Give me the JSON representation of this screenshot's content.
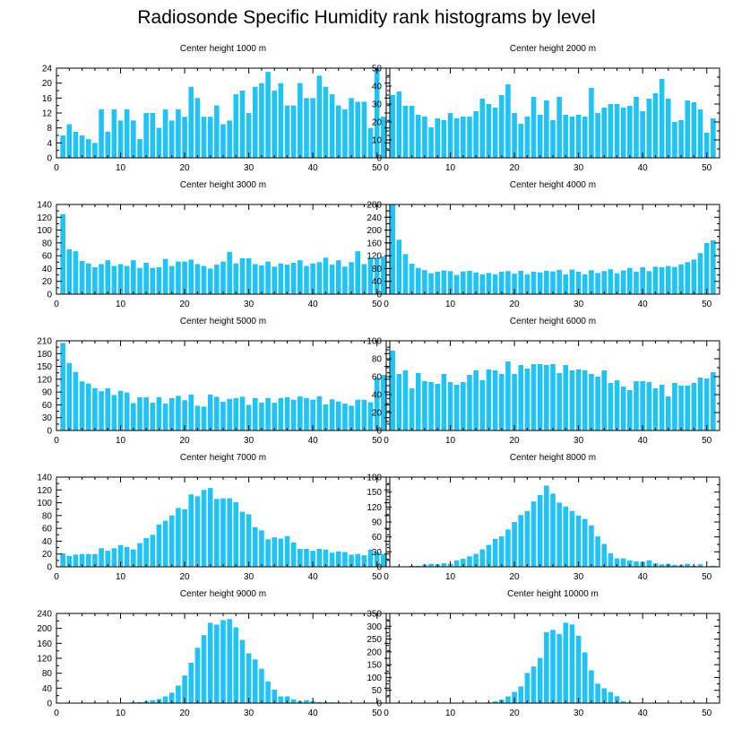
{
  "title": "Radiosonde Specific Humidity rank histograms by level",
  "colors": {
    "bar": "#1fc3f5",
    "axis": "#000000",
    "background": "#ffffff"
  },
  "chart_data": [
    {
      "type": "bar",
      "title": "Center height 1000 m",
      "xlim": [
        0,
        52
      ],
      "ylim": [
        0,
        24
      ],
      "xticks": [
        0,
        10,
        20,
        30,
        40,
        50
      ],
      "yticks": [
        0,
        4,
        8,
        12,
        16,
        20,
        24
      ],
      "x": [
        1,
        2,
        3,
        4,
        5,
        6,
        7,
        8,
        9,
        10,
        11,
        12,
        13,
        14,
        15,
        16,
        17,
        18,
        19,
        20,
        21,
        22,
        23,
        24,
        25,
        26,
        27,
        28,
        29,
        30,
        31,
        32,
        33,
        34,
        35,
        36,
        37,
        38,
        39,
        40,
        41,
        42,
        43,
        44,
        45,
        46,
        47,
        48,
        49,
        50,
        51
      ],
      "values": [
        6,
        9,
        7,
        6,
        5,
        4,
        13,
        7,
        13,
        10,
        13,
        10,
        5,
        12,
        12,
        8,
        13,
        10,
        13,
        11,
        19,
        16,
        11,
        11,
        14,
        9,
        10,
        17,
        18,
        12,
        19,
        20,
        23,
        18,
        20,
        14,
        14,
        20,
        16,
        16,
        22,
        19,
        17,
        14,
        13,
        16,
        15,
        15,
        8,
        24,
        11
      ]
    },
    {
      "type": "bar",
      "title": "Center height 2000 m",
      "xlim": [
        0,
        52
      ],
      "ylim": [
        0,
        50
      ],
      "xticks": [
        0,
        10,
        20,
        30,
        40,
        50
      ],
      "yticks": [
        0,
        10,
        20,
        30,
        40,
        50
      ],
      "x": [
        1,
        2,
        3,
        4,
        5,
        6,
        7,
        8,
        9,
        10,
        11,
        12,
        13,
        14,
        15,
        16,
        17,
        18,
        19,
        20,
        21,
        22,
        23,
        24,
        25,
        26,
        27,
        28,
        29,
        30,
        31,
        32,
        33,
        34,
        35,
        36,
        37,
        38,
        39,
        40,
        41,
        42,
        43,
        44,
        45,
        46,
        47,
        48,
        49,
        50,
        51
      ],
      "values": [
        35,
        37,
        29,
        29,
        24,
        23,
        17,
        22,
        21,
        25,
        22,
        23,
        23,
        26,
        33,
        30,
        28,
        35,
        41,
        25,
        19,
        23,
        34,
        24,
        32,
        21,
        34,
        24,
        23,
        24,
        23,
        39,
        25,
        28,
        30,
        30,
        28,
        29,
        34,
        26,
        33,
        36,
        44,
        33,
        20,
        21,
        32,
        31,
        27,
        14,
        22
      ]
    },
    {
      "type": "bar",
      "title": "Center height 3000 m",
      "xlim": [
        0,
        52
      ],
      "ylim": [
        0,
        140
      ],
      "xticks": [
        0,
        10,
        20,
        30,
        40,
        50
      ],
      "yticks": [
        0,
        20,
        40,
        60,
        80,
        100,
        120,
        140
      ],
      "x": [
        1,
        2,
        3,
        4,
        5,
        6,
        7,
        8,
        9,
        10,
        11,
        12,
        13,
        14,
        15,
        16,
        17,
        18,
        19,
        20,
        21,
        22,
        23,
        24,
        25,
        26,
        27,
        28,
        29,
        30,
        31,
        32,
        33,
        34,
        35,
        36,
        37,
        38,
        39,
        40,
        41,
        42,
        43,
        44,
        45,
        46,
        47,
        48,
        49,
        50,
        51
      ],
      "values": [
        125,
        70,
        67,
        52,
        48,
        42,
        47,
        53,
        44,
        47,
        44,
        53,
        41,
        49,
        41,
        42,
        55,
        44,
        51,
        51,
        54,
        47,
        44,
        40,
        46,
        51,
        66,
        48,
        56,
        56,
        47,
        45,
        51,
        43,
        48,
        46,
        49,
        53,
        44,
        48,
        50,
        57,
        46,
        53,
        43,
        50,
        67,
        47,
        57,
        57,
        59
      ]
    },
    {
      "type": "bar",
      "title": "Center height 4000 m",
      "xlim": [
        0,
        52
      ],
      "ylim": [
        0,
        280
      ],
      "xticks": [
        0,
        10,
        20,
        30,
        40,
        50
      ],
      "yticks": [
        0,
        40,
        80,
        120,
        160,
        200,
        240,
        280
      ],
      "x": [
        1,
        2,
        3,
        4,
        5,
        6,
        7,
        8,
        9,
        10,
        11,
        12,
        13,
        14,
        15,
        16,
        17,
        18,
        19,
        20,
        21,
        22,
        23,
        24,
        25,
        26,
        27,
        28,
        29,
        30,
        31,
        32,
        33,
        34,
        35,
        36,
        37,
        38,
        39,
        40,
        41,
        42,
        43,
        44,
        45,
        46,
        47,
        48,
        49,
        50,
        51
      ],
      "values": [
        280,
        170,
        125,
        95,
        82,
        75,
        65,
        70,
        74,
        72,
        60,
        71,
        73,
        68,
        62,
        66,
        62,
        70,
        72,
        64,
        73,
        62,
        70,
        68,
        73,
        71,
        76,
        62,
        77,
        70,
        62,
        75,
        66,
        72,
        78,
        65,
        74,
        82,
        70,
        84,
        72,
        86,
        84,
        88,
        85,
        93,
        100,
        108,
        128,
        160,
        168
      ]
    },
    {
      "type": "bar",
      "title": "Center height 5000 m",
      "xlim": [
        0,
        52
      ],
      "ylim": [
        0,
        210
      ],
      "xticks": [
        0,
        10,
        20,
        30,
        40,
        50
      ],
      "yticks": [
        0,
        30,
        60,
        90,
        120,
        150,
        180,
        210
      ],
      "x": [
        1,
        2,
        3,
        4,
        5,
        6,
        7,
        8,
        9,
        10,
        11,
        12,
        13,
        14,
        15,
        16,
        17,
        18,
        19,
        20,
        21,
        22,
        23,
        24,
        25,
        26,
        27,
        28,
        29,
        30,
        31,
        32,
        33,
        34,
        35,
        36,
        37,
        38,
        39,
        40,
        41,
        42,
        43,
        44,
        45,
        46,
        47,
        48,
        49,
        50,
        51
      ],
      "values": [
        205,
        158,
        137,
        115,
        110,
        99,
        92,
        99,
        83,
        93,
        89,
        64,
        78,
        78,
        65,
        78,
        63,
        76,
        81,
        71,
        84,
        58,
        56,
        84,
        79,
        67,
        74,
        76,
        79,
        60,
        76,
        65,
        76,
        65,
        76,
        78,
        72,
        80,
        76,
        72,
        80,
        61,
        73,
        68,
        63,
        58,
        72,
        72,
        66,
        123,
        130
      ]
    },
    {
      "type": "bar",
      "title": "Center height 6000 m",
      "xlim": [
        0,
        52
      ],
      "ylim": [
        0,
        100
      ],
      "xticks": [
        0,
        10,
        20,
        30,
        40,
        50
      ],
      "yticks": [
        0,
        20,
        40,
        60,
        80,
        100
      ],
      "x": [
        1,
        2,
        3,
        4,
        5,
        6,
        7,
        8,
        9,
        10,
        11,
        12,
        13,
        14,
        15,
        16,
        17,
        18,
        19,
        20,
        21,
        22,
        23,
        24,
        25,
        26,
        27,
        28,
        29,
        30,
        31,
        32,
        33,
        34,
        35,
        36,
        37,
        38,
        39,
        40,
        41,
        42,
        43,
        44,
        45,
        46,
        47,
        48,
        49,
        50,
        51
      ],
      "values": [
        89,
        63,
        67,
        47,
        64,
        55,
        54,
        52,
        63,
        54,
        51,
        54,
        62,
        67,
        56,
        68,
        67,
        63,
        77,
        63,
        73,
        69,
        74,
        74,
        73,
        74,
        64,
        73,
        67,
        68,
        67,
        63,
        60,
        67,
        53,
        56,
        49,
        45,
        55,
        55,
        54,
        47,
        51,
        38,
        53,
        50,
        50,
        53,
        59,
        58,
        65
      ]
    },
    {
      "type": "bar",
      "title": "Center height 7000 m",
      "xlim": [
        0,
        52
      ],
      "ylim": [
        0,
        140
      ],
      "xticks": [
        0,
        10,
        20,
        30,
        40,
        50
      ],
      "yticks": [
        0,
        20,
        40,
        60,
        80,
        100,
        120,
        140
      ],
      "x": [
        1,
        2,
        3,
        4,
        5,
        6,
        7,
        8,
        9,
        10,
        11,
        12,
        13,
        14,
        15,
        16,
        17,
        18,
        19,
        20,
        21,
        22,
        23,
        24,
        25,
        26,
        27,
        28,
        29,
        30,
        31,
        32,
        33,
        34,
        35,
        36,
        37,
        38,
        39,
        40,
        41,
        42,
        43,
        44,
        45,
        46,
        47,
        48,
        49,
        50,
        51
      ],
      "values": [
        21,
        17,
        19,
        20,
        20,
        20,
        29,
        25,
        29,
        34,
        31,
        27,
        37,
        45,
        50,
        66,
        72,
        80,
        92,
        90,
        113,
        110,
        120,
        123,
        106,
        107,
        107,
        101,
        86,
        82,
        62,
        57,
        43,
        46,
        44,
        48,
        38,
        28,
        28,
        25,
        28,
        27,
        22,
        24,
        23,
        19,
        20,
        18,
        27,
        23,
        20
      ]
    },
    {
      "type": "bar",
      "title": "Center height 8000 m",
      "xlim": [
        0,
        52
      ],
      "ylim": [
        0,
        180
      ],
      "xticks": [
        0,
        10,
        20,
        30,
        40,
        50
      ],
      "yticks": [
        0,
        30,
        60,
        90,
        120,
        150,
        180
      ],
      "x": [
        1,
        2,
        3,
        4,
        5,
        6,
        7,
        8,
        9,
        10,
        11,
        12,
        13,
        14,
        15,
        16,
        17,
        18,
        19,
        20,
        21,
        22,
        23,
        24,
        25,
        26,
        27,
        28,
        29,
        30,
        31,
        32,
        33,
        34,
        35,
        36,
        37,
        38,
        39,
        40,
        41,
        42,
        43,
        44,
        45,
        46,
        47,
        48,
        49,
        50,
        51
      ],
      "values": [
        0,
        1,
        1,
        2,
        2,
        4,
        6,
        5,
        7,
        6,
        13,
        16,
        21,
        26,
        35,
        44,
        56,
        61,
        75,
        90,
        104,
        112,
        131,
        144,
        163,
        147,
        129,
        121,
        112,
        103,
        96,
        83,
        61,
        46,
        27,
        17,
        17,
        13,
        11,
        10,
        13,
        7,
        5,
        6,
        4,
        3,
        6,
        2,
        5,
        1,
        2
      ]
    },
    {
      "type": "bar",
      "title": "Center height 9000 m",
      "xlim": [
        0,
        52
      ],
      "ylim": [
        0,
        240
      ],
      "xticks": [
        0,
        10,
        20,
        30,
        40,
        50
      ],
      "yticks": [
        0,
        40,
        80,
        120,
        160,
        200,
        240
      ],
      "x": [
        1,
        2,
        3,
        4,
        5,
        6,
        7,
        8,
        9,
        10,
        11,
        12,
        13,
        14,
        15,
        16,
        17,
        18,
        19,
        20,
        21,
        22,
        23,
        24,
        25,
        26,
        27,
        28,
        29,
        30,
        31,
        32,
        33,
        34,
        35,
        36,
        37,
        38,
        39,
        40,
        41,
        42,
        43,
        44,
        45,
        46,
        47,
        48,
        49,
        50,
        51
      ],
      "values": [
        0,
        0,
        0,
        0,
        0,
        0,
        0,
        0,
        0,
        0,
        0,
        2,
        3,
        5,
        8,
        11,
        18,
        28,
        47,
        74,
        108,
        148,
        182,
        215,
        210,
        222,
        225,
        203,
        169,
        133,
        117,
        92,
        58,
        36,
        18,
        18,
        10,
        5,
        8,
        5,
        3,
        3,
        2,
        2,
        2,
        1,
        1,
        1,
        0,
        0,
        0
      ]
    },
    {
      "type": "bar",
      "title": "Center height 10000 m",
      "xlim": [
        0,
        52
      ],
      "ylim": [
        0,
        350
      ],
      "xticks": [
        0,
        10,
        20,
        30,
        40,
        50
      ],
      "yticks": [
        0,
        50,
        100,
        150,
        200,
        250,
        300,
        350
      ],
      "x": [
        1,
        2,
        3,
        4,
        5,
        6,
        7,
        8,
        9,
        10,
        11,
        12,
        13,
        14,
        15,
        16,
        17,
        18,
        19,
        20,
        21,
        22,
        23,
        24,
        25,
        26,
        27,
        28,
        29,
        30,
        31,
        32,
        33,
        34,
        35,
        36,
        37,
        38,
        39,
        40,
        41,
        42,
        43,
        44,
        45,
        46,
        47,
        48,
        49,
        50,
        51
      ],
      "values": [
        0,
        0,
        0,
        0,
        0,
        0,
        0,
        0,
        0,
        0,
        0,
        0,
        0,
        0,
        1,
        3,
        7,
        14,
        26,
        44,
        65,
        118,
        143,
        176,
        277,
        286,
        270,
        314,
        307,
        263,
        198,
        128,
        76,
        58,
        43,
        27,
        7,
        4,
        2,
        2,
        1,
        1,
        0,
        1,
        1,
        2,
        1,
        0,
        0,
        0,
        0
      ]
    }
  ]
}
